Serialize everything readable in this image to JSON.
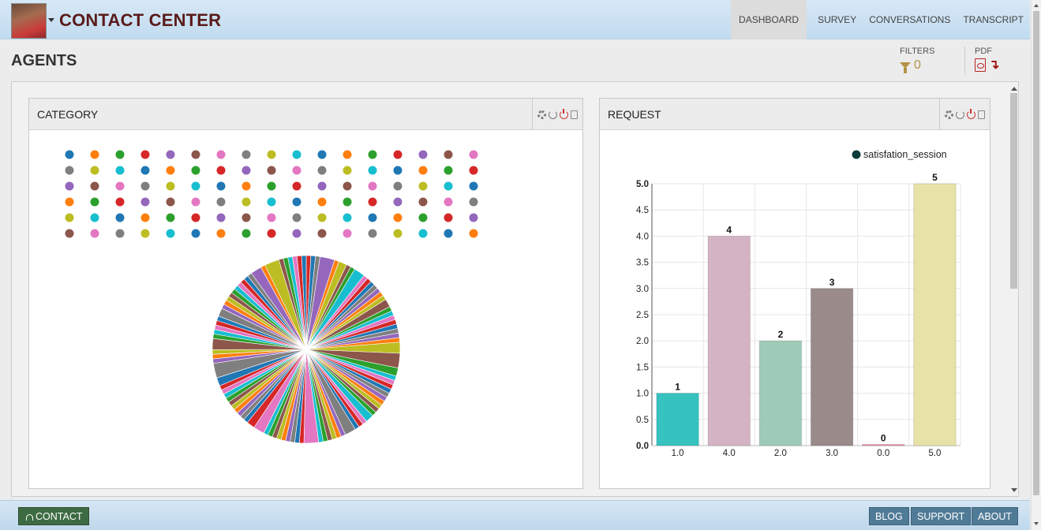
{
  "app": {
    "title": "CONTACT CENTER"
  },
  "nav": {
    "items": [
      "DASHBOARD",
      "SURVEY",
      "CONVERSATIONS",
      "TRANSCRIPT"
    ],
    "active": "DASHBOARD"
  },
  "page": {
    "title": "AGENTS"
  },
  "toolbar": {
    "filters_label": "FILTERS",
    "filters_count": "0",
    "pdf_label": "PDF"
  },
  "panels": {
    "category": {
      "title": "CATEGORY"
    },
    "request": {
      "title": "REQUEST"
    }
  },
  "palette": [
    "#1f77b4",
    "#ff7f0e",
    "#2ca02c",
    "#d62728",
    "#9467bd",
    "#8c564b",
    "#e377c2",
    "#7f7f7f",
    "#bcbd22",
    "#17becf"
  ],
  "chart_data": [
    {
      "type": "pie",
      "title": "CATEGORY",
      "legend_placement": "top",
      "legend_markers": 102,
      "slice_count": 102,
      "note_values": "slice labels not shown; approximately equal slices with a few larger ones"
    },
    {
      "type": "bar",
      "title": "REQUEST",
      "categories": [
        "1.0",
        "4.0",
        "2.0",
        "3.0",
        "0.0",
        "5.0"
      ],
      "series": [
        {
          "name": "satisfation_session",
          "values": [
            1,
            4,
            2,
            3,
            0,
            5
          ]
        }
      ],
      "bar_colors": [
        "#36c2bf",
        "#d4b4c4",
        "#9ecab8",
        "#9a8a8a",
        "#f08aa0",
        "#e6e2a8"
      ],
      "ylim": [
        0,
        5
      ],
      "yticks": [
        "0.0",
        "0.5",
        "1.0",
        "1.5",
        "2.0",
        "2.5",
        "3.0",
        "3.5",
        "4.0",
        "4.5",
        "5.0"
      ],
      "grid": true,
      "legend_placement": "top-right",
      "legend_color": "#0b3b3b"
    }
  ],
  "footer": {
    "contact_label": "CONTACT",
    "links": [
      "BLOG",
      "SUPPORT",
      "ABOUT"
    ]
  }
}
